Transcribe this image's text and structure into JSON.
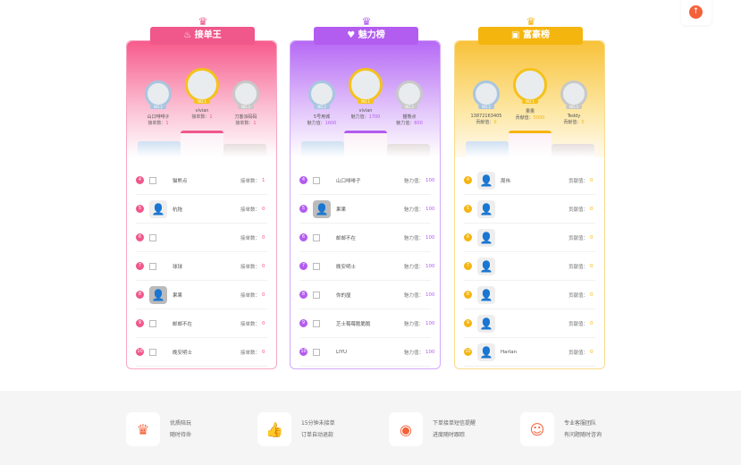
{
  "scroll_top": {
    "icon": "arrow-up-icon",
    "glyph": "↑"
  },
  "boards": [
    {
      "title": "接单王",
      "icon": "flame-icon",
      "glyph": "♨",
      "accent": "#f0578a",
      "value_label": "接单数：",
      "top3": [
        {
          "name": "山口啡啡子",
          "value": "1",
          "badge": "NO.2"
        },
        {
          "name": "vivian",
          "value": "1",
          "badge": "NO.1"
        },
        {
          "name": "刀客派码码",
          "value": "1",
          "badge": "NO.3"
        }
      ],
      "rows": [
        {
          "rank": "4",
          "name": "猫熊点",
          "value": "1",
          "avatar": "broken"
        },
        {
          "rank": "5",
          "name": "杭拖",
          "value": "0",
          "avatar": "placeholder"
        },
        {
          "rank": "6",
          "name": "",
          "value": "0",
          "avatar": "broken"
        },
        {
          "rank": "7",
          "name": "球球",
          "value": "0",
          "avatar": "broken"
        },
        {
          "rank": "8",
          "name": "果果",
          "value": "0",
          "avatar": "gray"
        },
        {
          "rank": "9",
          "name": "邮邮不在",
          "value": "0",
          "avatar": "broken"
        },
        {
          "rank": "10",
          "name": "晚安明士",
          "value": "0",
          "avatar": "broken"
        }
      ]
    },
    {
      "title": "魅力榜",
      "icon": "heart-icon",
      "glyph": "♥",
      "accent": "#b35cf0",
      "value_label": "魅力值：",
      "top3": [
        {
          "name": "5号用城",
          "value": "1600",
          "badge": "NO.2"
        },
        {
          "name": "vivian",
          "value": "1700",
          "badge": "NO.1"
        },
        {
          "name": "猫熊点",
          "value": "600",
          "badge": "NO.3"
        }
      ],
      "rows": [
        {
          "rank": "4",
          "name": "山口啡啡子",
          "value": "100",
          "avatar": "broken"
        },
        {
          "rank": "5",
          "name": "果果",
          "value": "100",
          "avatar": "gray"
        },
        {
          "rank": "6",
          "name": "邮邮不在",
          "value": "100",
          "avatar": "broken"
        },
        {
          "rank": "7",
          "name": "晚安明士",
          "value": "100",
          "avatar": "broken"
        },
        {
          "rank": "8",
          "name": "你的厘",
          "value": "100",
          "avatar": "broken"
        },
        {
          "rank": "9",
          "name": "芝士莓莓脆脆脆",
          "value": "100",
          "avatar": "broken"
        },
        {
          "rank": "10",
          "name": "LIYU",
          "value": "100",
          "avatar": "broken"
        }
      ]
    },
    {
      "title": "富豪榜",
      "icon": "wallet-icon",
      "glyph": "▣",
      "accent": "#f5b50f",
      "value_label": "贡献值：",
      "top3": [
        {
          "name": "13872163405",
          "value": "0",
          "badge": "NO.2"
        },
        {
          "name": "果果",
          "value": "5000",
          "badge": "NO.1"
        },
        {
          "name": "Teddy",
          "value": "0",
          "badge": "NO.3"
        }
      ],
      "rows": [
        {
          "rank": "4",
          "name": "周伟",
          "value": "0",
          "avatar": "placeholder"
        },
        {
          "rank": "5",
          "name": "",
          "value": "0",
          "avatar": "placeholder"
        },
        {
          "rank": "6",
          "name": "",
          "value": "0",
          "avatar": "placeholder"
        },
        {
          "rank": "7",
          "name": "",
          "value": "0",
          "avatar": "placeholder"
        },
        {
          "rank": "8",
          "name": "",
          "value": "0",
          "avatar": "placeholder"
        },
        {
          "rank": "9",
          "name": "",
          "value": "0",
          "avatar": "placeholder"
        },
        {
          "rank": "10",
          "name": "Harlan",
          "value": "0",
          "avatar": "placeholder"
        }
      ]
    }
  ],
  "features": [
    {
      "icon": "crown-badge-icon",
      "glyph": "♛",
      "line1": "优质陪玩",
      "line2": "随时待命"
    },
    {
      "icon": "thumbs-up-icon",
      "glyph": "👍",
      "line1": "15分钟未接单",
      "line2": "订单自动退款"
    },
    {
      "icon": "target-icon",
      "glyph": "◉",
      "line1": "下单接单短信提醒",
      "line2": "进度随时跟踪"
    },
    {
      "icon": "customer-service-icon",
      "glyph": "☺",
      "line1": "专业客服团队",
      "line2": "有问题随时咨询"
    }
  ]
}
